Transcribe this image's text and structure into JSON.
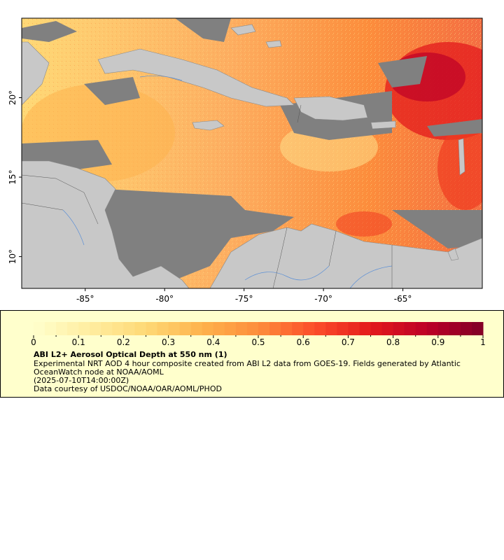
{
  "map": {
    "title": "ABI L2+ Aerosol Optical Depth at 550 nm (1)",
    "lon_range": [
      -89,
      -60
    ],
    "lat_range": [
      8,
      25
    ],
    "x_ticks": [
      {
        "value": -85,
        "label": "-85°"
      },
      {
        "value": -80,
        "label": "-80°"
      },
      {
        "value": -75,
        "label": "-75°"
      },
      {
        "value": -70,
        "label": "-70°"
      },
      {
        "value": -65,
        "label": "-65°"
      }
    ],
    "y_ticks": [
      {
        "value": 20,
        "label": "20°"
      },
      {
        "value": 15,
        "label": "15°"
      },
      {
        "value": 10,
        "label": "10°"
      }
    ],
    "colors": {
      "land": "#c8c8c8",
      "no_data": "#808080",
      "low": "#ffffcc",
      "mid": "#fd8d3c",
      "high": "#800026"
    }
  },
  "colorbar": {
    "min": 0,
    "max": 1,
    "tick_labels": [
      "0",
      "0.1",
      "0.2",
      "0.3",
      "0.4",
      "0.5",
      "0.6",
      "0.7",
      "0.8",
      "0.9",
      "1"
    ],
    "colors": [
      "#ffffcc",
      "#ffeda0",
      "#fed976",
      "#feb24c",
      "#fd8d3c",
      "#fc4e2a",
      "#e31a1c",
      "#bd0026",
      "#800026"
    ]
  },
  "legend": {
    "title": "ABI L2+ Aerosol Optical Depth at 550 nm (1)",
    "description": "Experimental NRT AOD 4 hour composite created from ABI L2 data from GOES-19. Fields generated by Atlantic OceanWatch node at NOAA/AOML",
    "time": "(2025-07-10T14:00:00Z)",
    "credit": "Data courtesy of USDOC/NOAA/OAR/AOML/PHOD"
  }
}
